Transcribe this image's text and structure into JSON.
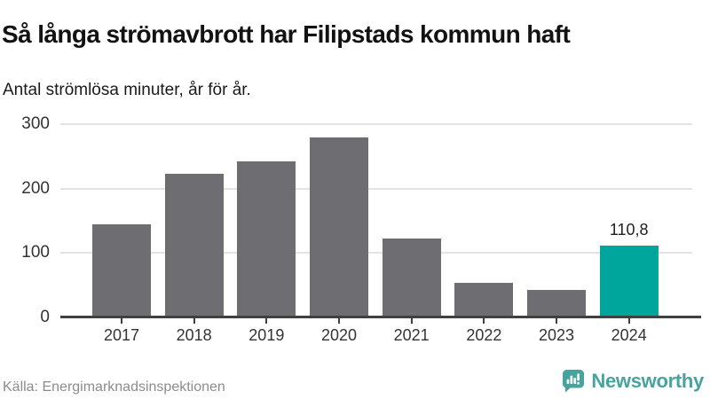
{
  "chart_data": {
    "type": "bar",
    "title": "Så långa strömavbrott har Filipstads kommun haft",
    "subtitle": "Antal strömlösa minuter, år för år.",
    "categories": [
      "2017",
      "2018",
      "2019",
      "2020",
      "2021",
      "2022",
      "2023",
      "2024"
    ],
    "values": [
      145,
      223,
      242,
      279,
      123,
      54,
      43,
      110.8
    ],
    "value_labels": [
      {
        "index": 7,
        "text": "110,8"
      }
    ],
    "highlight_index": 7,
    "ylim": [
      0,
      300
    ],
    "yticks": [
      0,
      100,
      200,
      300
    ],
    "grid": true,
    "xlabel": "",
    "ylabel": "",
    "legend_position": "none",
    "colors": {
      "bar": "#6d6d72",
      "highlight": "#00a59b",
      "grid": "#e3e3e3",
      "axis": "#404040",
      "tick_label": "#333333",
      "value_label": "#1f1f1f"
    }
  },
  "footer": {
    "source": "Källa: Energimarknadsinspektionen",
    "brand": "Newsworthy",
    "brand_color": "#46a39e"
  }
}
